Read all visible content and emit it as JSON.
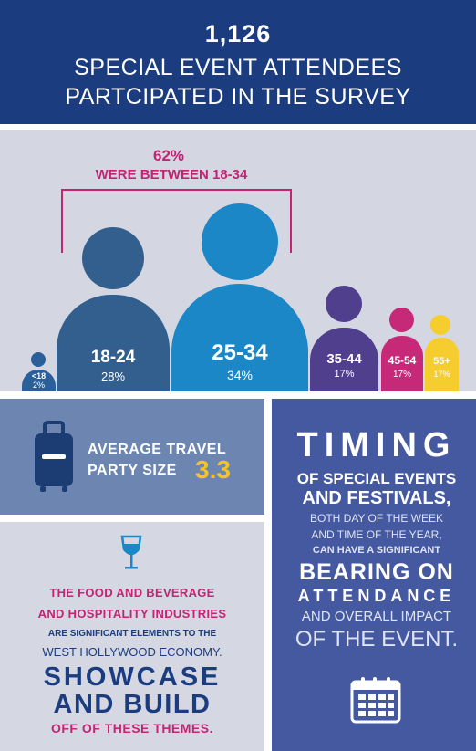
{
  "header": {
    "count": "1,126",
    "line1": "SPECIAL EVENT ATTENDEES",
    "line2": "PARTCIPATED IN THE SURVEY"
  },
  "age_groups": {
    "highlight_pct": "62%",
    "highlight_label": "WERE BETWEEN 18-34",
    "groups": [
      {
        "age": "<18",
        "pct": "2%",
        "color": "#2a5f99"
      },
      {
        "age": "18-24",
        "pct": "28%",
        "color": "#325f8e"
      },
      {
        "age": "25-34",
        "pct": "34%",
        "color": "#1b87c6"
      },
      {
        "age": "35-44",
        "pct": "17%",
        "color": "#4f3f8c"
      },
      {
        "age": "45-54",
        "pct": "17%",
        "color": "#c72979"
      },
      {
        "age": "55+",
        "pct": "17%",
        "color": "#f6cd2e"
      }
    ]
  },
  "travel": {
    "line1": "AVERAGE TRAVEL",
    "line2": "PARTY SIZE",
    "value": "3.3",
    "icon": "suitcase-icon"
  },
  "food": {
    "icon": "wine-glass-icon",
    "line1": "THE FOOD AND BEVERAGE",
    "line2": "AND HOSPITALITY INDUSTRIES",
    "line3": "ARE SIGNIFICANT ELEMENTS TO THE",
    "line4": "WEST HOLLYWOOD ECONOMY.",
    "line5": "SHOWCASE",
    "line6": "AND BUILD",
    "line7": "OFF OF THESE THEMES."
  },
  "timing": {
    "line1": "TIMING",
    "line2": "OF SPECIAL EVENTS",
    "line3": "AND FESTIVALS,",
    "line4": "BOTH DAY OF THE WEEK",
    "line5": "AND TIME OF THE YEAR,",
    "line6": "CAN HAVE A SIGNIFICANT",
    "line7": "BEARING ON",
    "line8": "ATTENDANCE",
    "line9": "AND OVERALL IMPACT",
    "line10": "OF THE EVENT.",
    "icon": "calendar-icon"
  },
  "colors": {
    "navy": "#1b3d7f",
    "magenta": "#c22574",
    "yellow": "#f4c425"
  }
}
